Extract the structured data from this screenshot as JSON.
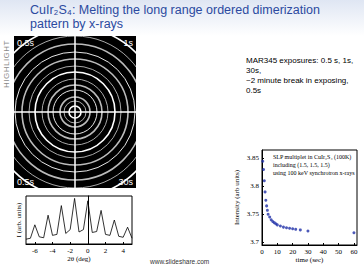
{
  "header": {
    "title": "CuIr₂S₄: Melting the long range ordered dimerization pattern by x-rays",
    "side_label": "HIGHLIGHT"
  },
  "description": [
    "MAR345 exposures: 0.5 s, 1s, 30s,",
    "~2 minute break in exposing, 0.5s"
  ],
  "image": {
    "corner_labels": [
      "0.5s",
      "1s",
      "0.5s",
      "30s"
    ]
  },
  "footer": "www.slideshare.com",
  "chart_data": [
    {
      "type": "line",
      "xlabel": "2θ (deg)",
      "ylabel": "I (arb. units)",
      "x": [
        -7,
        -6.5,
        -6,
        -5.5,
        -5,
        -4.5,
        -4,
        -3.5,
        -3,
        -2.5,
        -2,
        -1.5,
        -1,
        -0.5,
        0,
        0.5,
        1,
        1.5,
        2,
        2.5,
        3,
        3.5,
        4,
        4.5,
        5
      ],
      "values": [
        1,
        1.2,
        4,
        1.5,
        1.3,
        6,
        1.8,
        2,
        8,
        2.2,
        3,
        9.5,
        2.5,
        3,
        9,
        2.4,
        2.6,
        7,
        2,
        1.8,
        5,
        1.6,
        1.4,
        3.5,
        1.2
      ],
      "color": "#000000",
      "xlim": [
        -7,
        5
      ],
      "xticks": [
        -6,
        -4,
        -2,
        0,
        2,
        4
      ],
      "ylim": [
        0,
        10
      ],
      "tick_labels": "x"
    },
    {
      "type": "scatter",
      "xlabel": "time (sec)",
      "ylabel": "Intensity (arb units)",
      "annotations": [
        "SLP multiplet in CuIr₂S₄ (100K)",
        "including (1.5, 1.5, 1.5)",
        "using 100 keV synchrotron x-rays"
      ],
      "x": [
        0.5,
        1,
        1.5,
        2,
        2.5,
        3,
        3.5,
        4,
        5,
        6,
        7,
        8,
        9,
        10,
        12,
        14,
        16,
        18,
        20,
        22,
        25,
        30,
        60
      ],
      "values": [
        3.845,
        3.83,
        3.81,
        3.79,
        3.775,
        3.765,
        3.757,
        3.75,
        3.745,
        3.74,
        3.737,
        3.735,
        3.733,
        3.731,
        3.729,
        3.727,
        3.726,
        3.725,
        3.724,
        3.723,
        3.722,
        3.72,
        3.717
      ],
      "color": "#1f2fa8",
      "marker": "circle",
      "xlim": [
        0,
        62
      ],
      "xticks": [
        0,
        10,
        20,
        30,
        40,
        50,
        60
      ],
      "ylim": [
        3.695,
        3.865
      ],
      "yticks": [
        3.7,
        3.75,
        3.8,
        3.85
      ]
    }
  ]
}
